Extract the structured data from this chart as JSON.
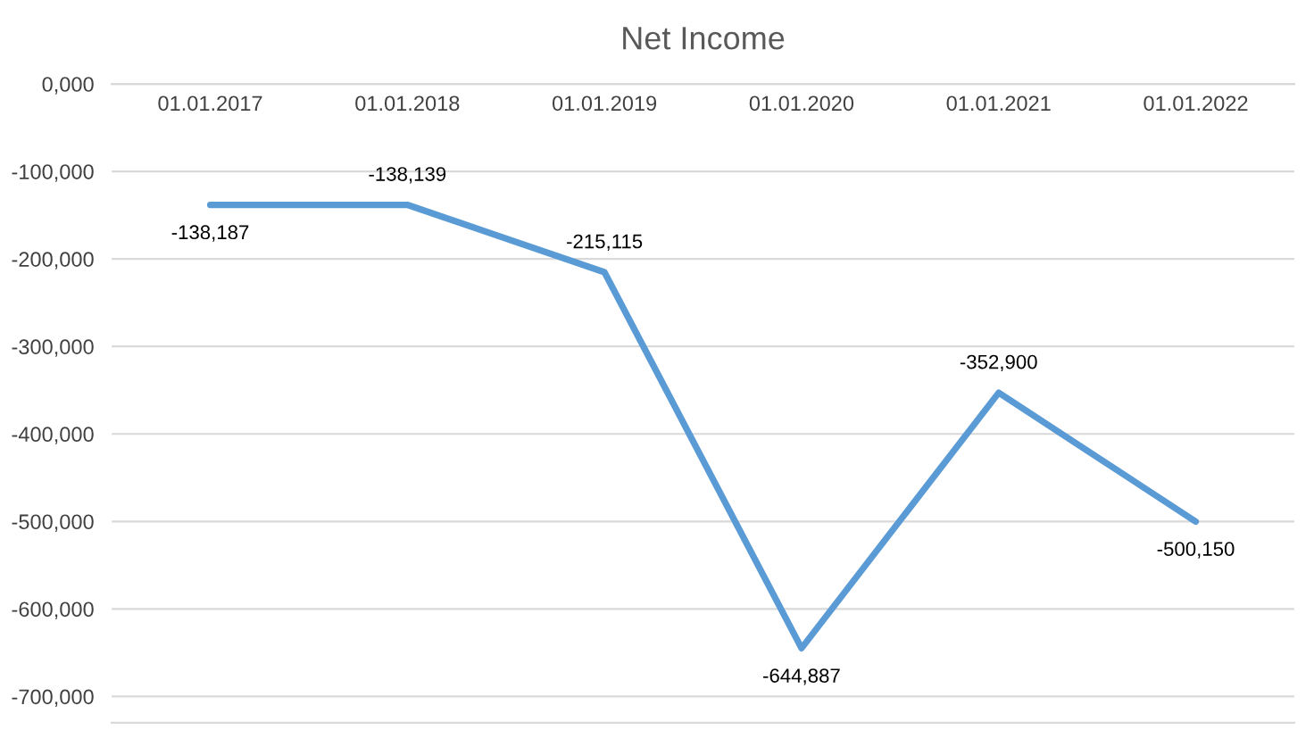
{
  "chart_data": {
    "type": "line",
    "title": "Net Income",
    "categories": [
      "01.01.2017",
      "01.01.2018",
      "01.01.2019",
      "01.01.2020",
      "01.01.2021",
      "01.01.2022"
    ],
    "series": [
      {
        "color": "#5b9bd5",
        "values": [
          -138187,
          -138139,
          -215115,
          -644887,
          -352900,
          -500150
        ],
        "value_labels": [
          "-138,187",
          "-138,139",
          "-215,115",
          "-644,887",
          "-352,900",
          "-500,150"
        ]
      }
    ],
    "ylim": [
      -730000,
      0
    ],
    "yticks": [
      {
        "value": 0,
        "label": "0,000"
      },
      {
        "value": -100000,
        "label": "-100,000"
      },
      {
        "value": -200000,
        "label": "-200,000"
      },
      {
        "value": -300000,
        "label": "-300,000"
      },
      {
        "value": -400000,
        "label": "-400,000"
      },
      {
        "value": -500000,
        "label": "-500,000"
      },
      {
        "value": -600000,
        "label": "-600,000"
      },
      {
        "value": -700000,
        "label": "-700,000"
      }
    ],
    "grid": "y",
    "marker": "none",
    "line_style": "solid"
  }
}
